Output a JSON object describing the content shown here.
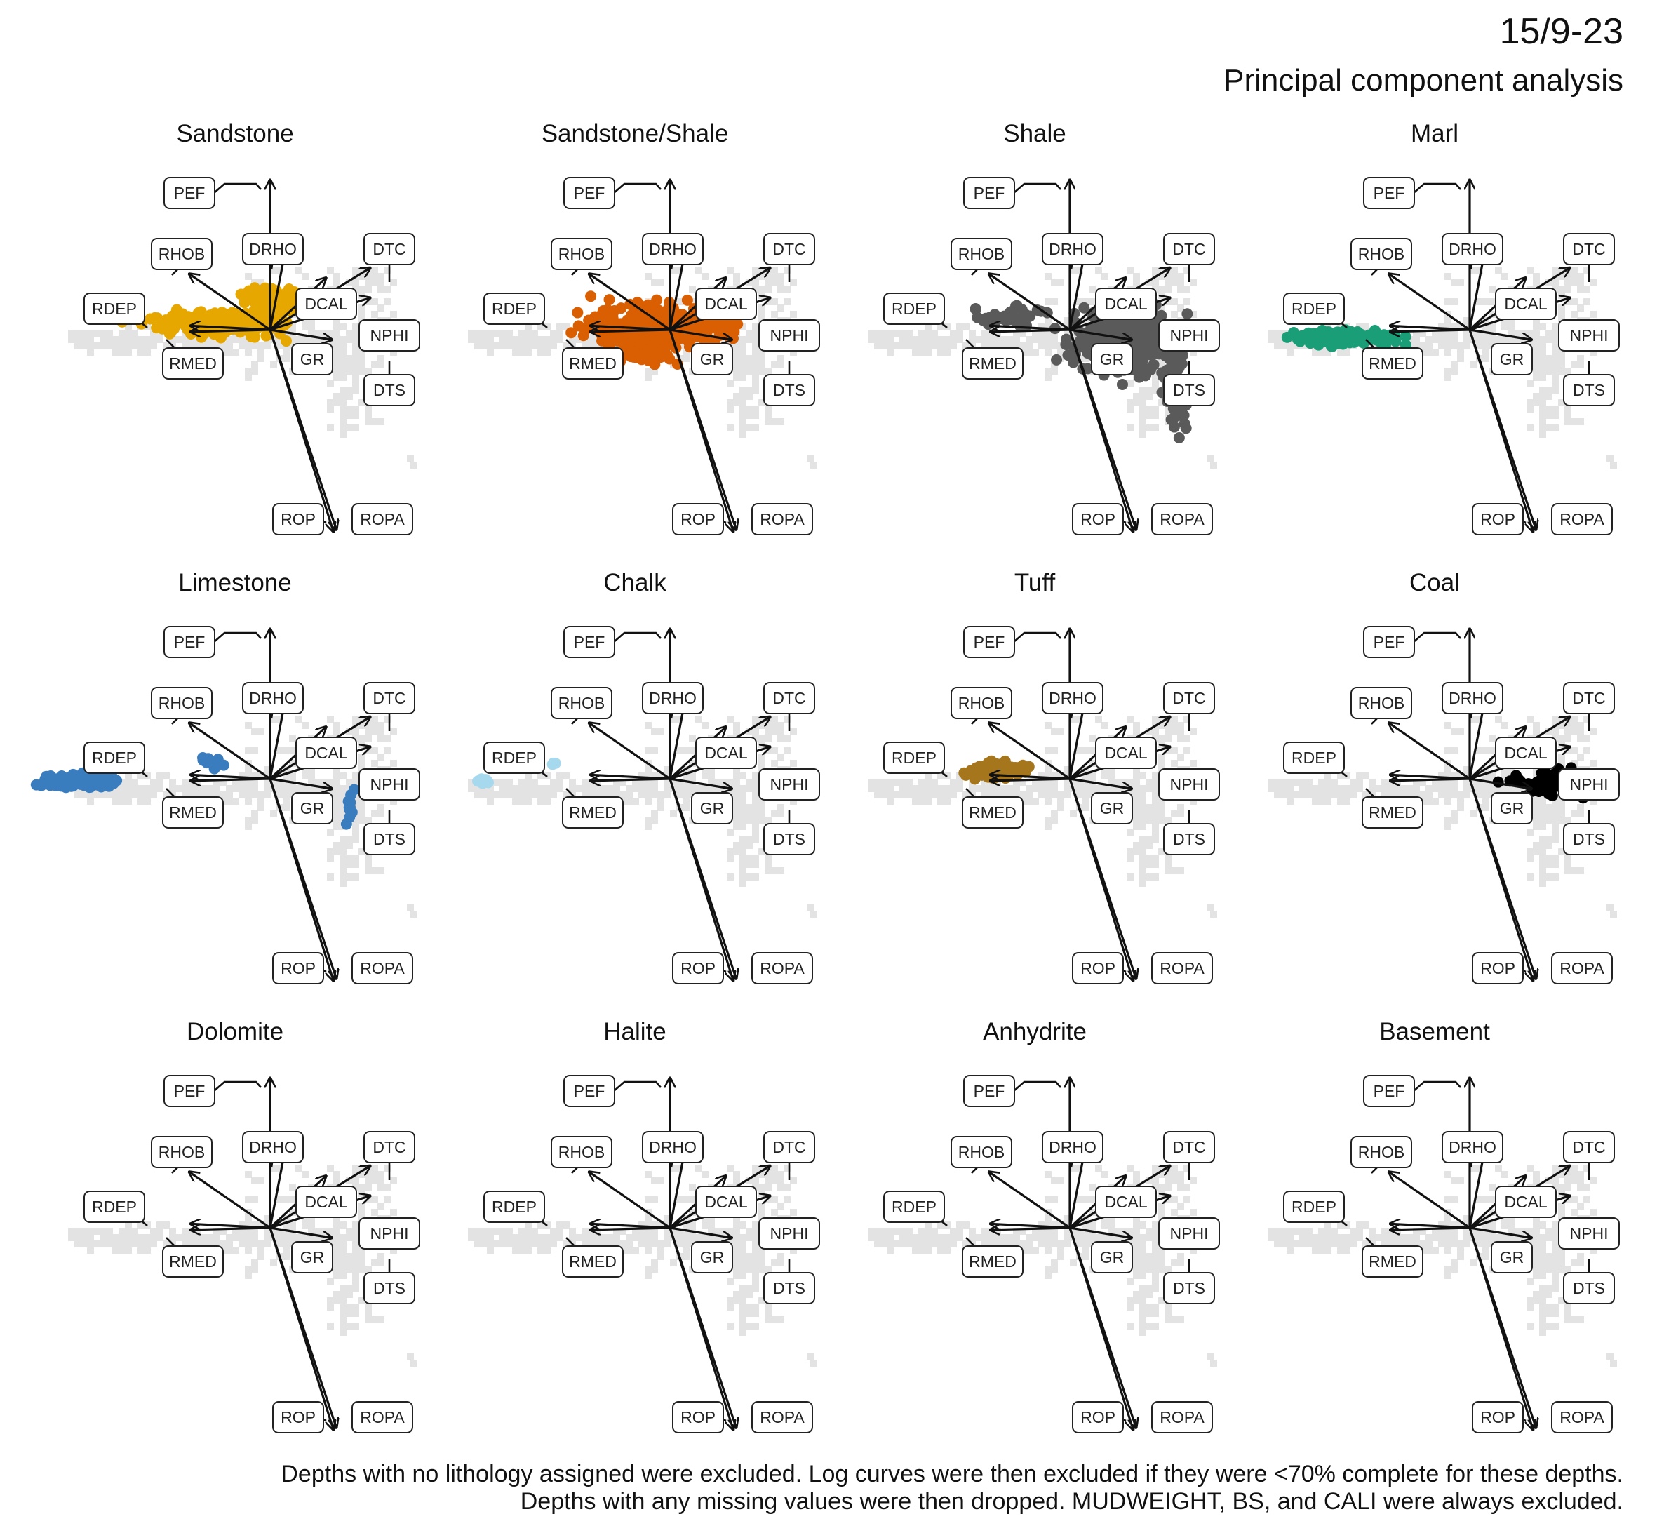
{
  "figure": {
    "title": "15/9-23",
    "subtitle": "Principal component analysis",
    "caption_lines": [
      "Depths with no lithology assigned were excluded. Log curves were then excluded if they were <70% complete for these depths.",
      "Depths with any missing values were then dropped. MUDWEIGHT, BS, and CALI were always excluded."
    ]
  },
  "chart_data": {
    "type": "scatter",
    "kind": "PCA biplot small multiples",
    "axes_shown": false,
    "grid": false,
    "layout": "3 rows x 4 columns",
    "background_points_color": "#e3e3e3",
    "loadings": [
      {
        "name": "PEF",
        "x": 0.0,
        "y": 0.75
      },
      {
        "name": "DRHO",
        "x": 0.12,
        "y": 0.46
      },
      {
        "name": "RHOB",
        "x": -0.55,
        "y": 0.28
      },
      {
        "name": "DTC",
        "x": 0.68,
        "y": 0.31
      },
      {
        "name": "DCAL",
        "x": 0.38,
        "y": 0.26
      },
      {
        "name": "RDEP",
        "x": -0.54,
        "y": 0.02
      },
      {
        "name": "RMED",
        "x": -0.54,
        "y": -0.01
      },
      {
        "name": "NPHI",
        "x": 0.42,
        "y": -0.05
      },
      {
        "name": "GR",
        "x": 0.42,
        "y": 0.1
      },
      {
        "name": "DTS",
        "x": 0.68,
        "y": 0.16
      },
      {
        "name": "ROP",
        "x": 0.45,
        "y": -1.0
      },
      {
        "name": "ROPA",
        "x": 0.43,
        "y": -1.01
      }
    ],
    "panels": [
      {
        "lithology": "Sandstone",
        "color": "#E6A800"
      },
      {
        "lithology": "Sandstone/Shale",
        "color": "#D95F02"
      },
      {
        "lithology": "Shale",
        "color": "#5A5A5A"
      },
      {
        "lithology": "Marl",
        "color": "#1A9E77"
      },
      {
        "lithology": "Limestone",
        "color": "#3A7DBF"
      },
      {
        "lithology": "Chalk",
        "color": "#A6D8EE"
      },
      {
        "lithology": "Tuff",
        "color": "#A6761D"
      },
      {
        "lithology": "Coal",
        "color": "#000000"
      },
      {
        "lithology": "Dolomite",
        "color": "#C77CFF"
      },
      {
        "lithology": "Halite",
        "color": "#FFB3C1"
      },
      {
        "lithology": "Anhydrite",
        "color": "#7570B3"
      },
      {
        "lithology": "Basement",
        "color": "#8B4513"
      }
    ]
  }
}
